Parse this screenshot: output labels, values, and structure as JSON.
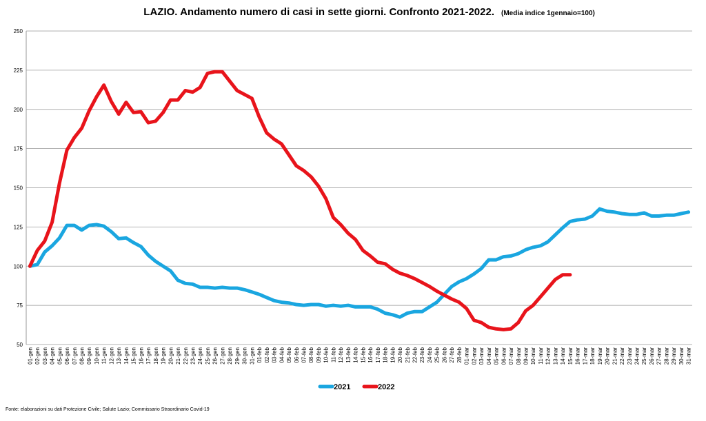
{
  "chart_data": {
    "type": "line",
    "title": "LAZIO. Andamento numero di casi in sette giorni. Confronto 2021-2022.",
    "subtitle": "(Media indice 1gennaio=100)",
    "source": "Fonte: elaborazioni su dati Protezione Civile; Salute Lazio; Commissario Straordinario Covid-19",
    "categories": [
      "01-gen",
      "02-gen",
      "03-gen",
      "04-gen",
      "05-gen",
      "06-gen",
      "07-gen",
      "08-gen",
      "09-gen",
      "10-gen",
      "11-gen",
      "12-gen",
      "13-gen",
      "14-gen",
      "15-gen",
      "16-gen",
      "17-gen",
      "18-gen",
      "19-gen",
      "20-gen",
      "21-gen",
      "22-gen",
      "23-gen",
      "24-gen",
      "25-gen",
      "26-gen",
      "27-gen",
      "28-gen",
      "29-gen",
      "30-gen",
      "31-gen",
      "01-feb",
      "02-feb",
      "03-feb",
      "04-feb",
      "05-feb",
      "06-feb",
      "07-feb",
      "08-feb",
      "09-feb",
      "10-feb",
      "11-feb",
      "12-feb",
      "13-feb",
      "14-feb",
      "15-feb",
      "16-feb",
      "17-feb",
      "18-feb",
      "19-feb",
      "20-feb",
      "21-feb",
      "22-feb",
      "23-feb",
      "24-feb",
      "25-feb",
      "26-feb",
      "27-feb",
      "28-feb",
      "01-mar",
      "02-mar",
      "03-mar",
      "04-mar",
      "05-mar",
      "06-mar",
      "07-mar",
      "08-mar",
      "09-mar",
      "10-mar",
      "11-mar",
      "12-mar",
      "13-mar",
      "14-mar",
      "15-mar",
      "16-mar",
      "17-mar",
      "18-mar",
      "19-mar",
      "20-mar",
      "21-mar",
      "22-mar",
      "23-mar",
      "24-mar",
      "25-mar",
      "26-mar",
      "27-mar",
      "28-mar",
      "29-mar",
      "30-mar",
      "31-mar"
    ],
    "series": [
      {
        "name": "2021",
        "color": "#1aa6e0",
        "values": [
          100,
          101,
          109,
          113,
          118,
          126,
          126,
          123,
          126,
          126.5,
          125.5,
          122,
          117.5,
          118,
          115,
          112.5,
          107,
          103,
          100,
          97,
          91,
          89,
          88.5,
          86.5,
          86.5,
          86,
          86.5,
          86,
          86,
          85,
          83.5,
          82,
          80,
          78,
          77,
          76.5,
          75.5,
          75,
          75.5,
          75.5,
          74.5,
          75,
          74.5,
          75,
          74,
          74,
          74,
          72.5,
          70,
          69,
          67.5,
          70,
          71,
          71,
          74,
          77,
          82,
          87,
          90,
          92,
          95,
          98.5,
          104,
          104,
          106,
          106.5,
          108,
          110.5,
          112,
          113,
          115.5,
          120,
          124.5,
          128.5,
          129.5,
          130,
          132,
          136.5,
          135,
          134.5,
          133.5,
          133,
          133,
          134,
          132,
          132,
          132.5,
          132.5,
          133.5,
          134.5
        ]
      },
      {
        "name": "2022",
        "color": "#e8141b",
        "values": [
          100,
          110,
          116,
          128,
          153,
          174,
          182,
          188,
          199,
          208,
          215.5,
          205,
          197,
          204.5,
          198,
          198.5,
          191.5,
          192.5,
          198,
          206,
          206,
          212,
          211,
          214,
          223,
          224,
          224,
          218,
          212,
          209.5,
          207,
          195,
          185,
          181,
          178,
          171,
          164,
          161,
          157,
          151,
          143,
          131,
          126.5,
          121,
          117,
          110,
          106.5,
          102.5,
          101.5,
          98,
          95.5,
          94,
          92,
          89.5,
          87,
          84,
          81.5,
          79,
          77,
          73,
          65.5,
          64,
          61,
          60,
          59.5,
          60,
          64,
          71.5,
          75,
          80.5,
          86,
          91.5,
          94.5,
          94.5,
          null,
          null,
          null,
          null,
          null,
          null,
          null,
          null,
          null,
          null,
          null,
          null,
          null,
          null,
          null,
          null
        ]
      }
    ],
    "ylim": [
      50,
      250
    ],
    "yticks": [
      50,
      75,
      100,
      125,
      150,
      175,
      200,
      225,
      250
    ],
    "grid": true,
    "legend": "bottom"
  }
}
